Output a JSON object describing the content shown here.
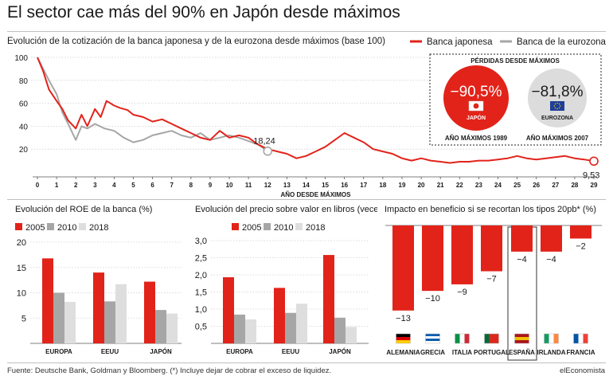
{
  "title": "El sector cae más del 90% en Japón desde máximos",
  "subtitle": "Evolución de la cotización de la banca japonesa y de la eurozona desde máximos (base 100)",
  "footer": "Fuente: Deutsche Bank, Goldman y Bloomberg. (*) Incluye dejar  de cobrar el exceso de liquidez.",
  "brand": "elEconomista",
  "colors": {
    "red": "#e2231a",
    "gray": "#a6a6a6",
    "light": "#dedede",
    "dark": "#1a1a1a"
  },
  "chart_data": [
    {
      "type": "line",
      "id": "main",
      "xlabel": "AÑO DESDE MÁXIMOS",
      "xlim": [
        0,
        29
      ],
      "ylim": [
        0,
        100
      ],
      "xticks": [
        "0",
        "1",
        "2",
        "3",
        "4",
        "5",
        "6",
        "7",
        "8",
        "9",
        "10",
        "11",
        "12",
        "13",
        "14",
        "15",
        "16",
        "17",
        "18",
        "19",
        "20",
        "21",
        "22",
        "23",
        "24",
        "25",
        "26",
        "27",
        "28",
        "29"
      ],
      "yticks": [
        "20",
        "40",
        "60",
        "80",
        "100"
      ],
      "legend": [
        "Banca japonesa",
        "Banca de la eurozona"
      ],
      "series": [
        {
          "name": "Banca japonesa",
          "color": "#e2231a",
          "x": [
            0,
            0.3,
            0.6,
            1.0,
            1.3,
            1.6,
            2.0,
            2.3,
            2.6,
            3.0,
            3.3,
            3.6,
            4.0,
            4.3,
            4.7,
            5.0,
            5.5,
            6.0,
            6.5,
            7.0,
            7.5,
            8.0,
            8.5,
            9.0,
            9.5,
            10.0,
            10.5,
            11.0,
            11.5,
            12.0,
            12.5,
            13.0,
            13.5,
            14.0,
            14.5,
            15.0,
            15.5,
            16.0,
            16.5,
            17.0,
            17.5,
            18.0,
            18.5,
            19.0,
            19.5,
            20.0,
            20.5,
            21.0,
            21.5,
            22.0,
            22.5,
            23.0,
            23.5,
            24.0,
            24.5,
            25.0,
            25.5,
            26.0,
            26.5,
            27.0,
            27.5,
            28.0,
            28.5,
            29.0
          ],
          "values": [
            100,
            88,
            72,
            62,
            55,
            45,
            38,
            50,
            40,
            55,
            48,
            62,
            58,
            56,
            54,
            50,
            48,
            44,
            46,
            42,
            38,
            34,
            30,
            28,
            36,
            30,
            32,
            30,
            24,
            20,
            18,
            16,
            12,
            14,
            18,
            22,
            28,
            34,
            30,
            26,
            20,
            18,
            16,
            12,
            10,
            12,
            10,
            9,
            8,
            9,
            9,
            10,
            10,
            11,
            12,
            14,
            12,
            11,
            12,
            13,
            14,
            12,
            11,
            9.53
          ]
        },
        {
          "name": "Banca de la eurozona",
          "color": "#a6a6a6",
          "x": [
            0,
            0.3,
            0.6,
            1.0,
            1.3,
            1.6,
            2.0,
            2.3,
            2.6,
            3.0,
            3.5,
            4.0,
            4.5,
            5.0,
            5.5,
            6.0,
            6.5,
            7.0,
            7.5,
            8.0,
            8.5,
            9.0,
            9.5,
            10.0,
            10.5,
            11.0,
            11.5,
            12.0
          ],
          "values": [
            100,
            90,
            80,
            68,
            52,
            42,
            28,
            40,
            38,
            42,
            38,
            36,
            30,
            26,
            28,
            32,
            34,
            36,
            32,
            30,
            34,
            28,
            30,
            32,
            30,
            27,
            24,
            18.24
          ]
        }
      ],
      "labels": [
        {
          "text": "18,24",
          "x": 12,
          "y": 18.24
        },
        {
          "text": "9,53",
          "x": 29,
          "y": 9.53
        }
      ]
    },
    {
      "type": "bar",
      "id": "roe",
      "title": "Evolución del ROE de la banca (%)",
      "categories": [
        "EUROPA",
        "EEUU",
        "JAPÓN"
      ],
      "legend": [
        "2005",
        "2010",
        "2018"
      ],
      "ylim": [
        0,
        20
      ],
      "yticks": [
        "5",
        "10",
        "15",
        "20"
      ],
      "series": [
        {
          "name": "2005",
          "color": "#e2231a",
          "values": [
            16.8,
            14.0,
            12.2
          ]
        },
        {
          "name": "2010",
          "color": "#a6a6a6",
          "values": [
            10.0,
            8.3,
            6.6
          ]
        },
        {
          "name": "2018",
          "color": "#dedede",
          "values": [
            8.2,
            11.7,
            5.9
          ]
        }
      ]
    },
    {
      "type": "bar",
      "id": "pbv",
      "title": "Evolución del precio sobre valor en libros (veces)",
      "categories": [
        "EUROPA",
        "EEUU",
        "JAPÓN"
      ],
      "legend": [
        "2005",
        "2010",
        "2018"
      ],
      "ylim": [
        0,
        3.0
      ],
      "yticks": [
        "0,5",
        "1,0",
        "1,5",
        "2,0",
        "2,5",
        "3,0"
      ],
      "series": [
        {
          "name": "2005",
          "color": "#e2231a",
          "values": [
            1.93,
            1.62,
            2.58
          ]
        },
        {
          "name": "2010",
          "color": "#a6a6a6",
          "values": [
            0.84,
            0.89,
            0.75
          ]
        },
        {
          "name": "2018",
          "color": "#dedede",
          "values": [
            0.7,
            1.16,
            0.48
          ]
        }
      ]
    },
    {
      "type": "bar",
      "id": "impact",
      "title": "Impacto en beneficio si se recortan los tipos 20pb* (%)",
      "categories": [
        "ALEMANIA",
        "GRECIA",
        "ITALIA",
        "PORTUGAL",
        "ESPAÑA",
        "IRLANDA",
        "FRANCIA"
      ],
      "values": [
        -13,
        -10,
        -9,
        -7,
        -4,
        -4,
        -2
      ],
      "value_labels": [
        "−13",
        "−10",
        "−9",
        "−7",
        "−4",
        "−4",
        "−2"
      ],
      "highlight": "ESPAÑA",
      "ylim": [
        -14,
        0
      ]
    }
  ],
  "callout": {
    "title": "PÉRDIDAS DESDE MÁXIMOS",
    "japan": {
      "value": "−90,5%",
      "label": "JAPÓN",
      "caption": "AÑO MÁXIMOS 1989"
    },
    "euro": {
      "value": "−81,8%",
      "label": "EUROZONA",
      "caption": "AÑO MÁXIMOS 2007"
    }
  }
}
